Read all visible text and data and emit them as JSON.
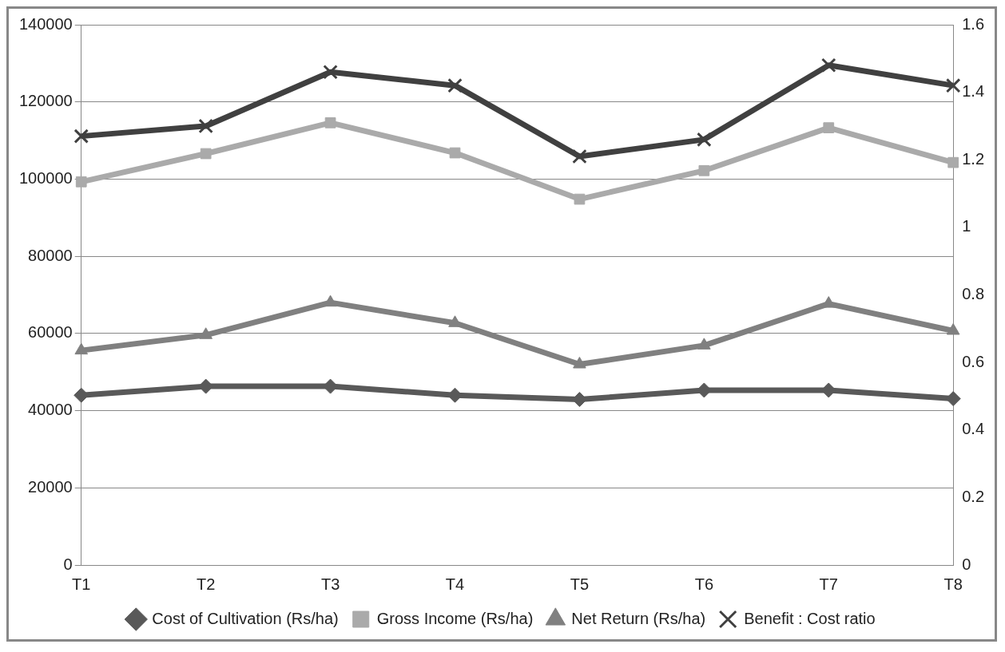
{
  "chart_data": {
    "type": "line",
    "categories": [
      "T1",
      "T2",
      "T3",
      "T4",
      "T5",
      "T6",
      "T7",
      "T8"
    ],
    "series": [
      {
        "name": "Cost of Cultivation (Rs/ha)",
        "color": "#595959",
        "marker": "diamond",
        "values": [
          44000,
          46300,
          46300,
          44000,
          42900,
          45300,
          45300,
          43100
        ]
      },
      {
        "name": "Gross Income (Rs/ha)",
        "color": "#aaaaaa",
        "marker": "square",
        "values": [
          99300,
          106600,
          114600,
          106800,
          94800,
          102200,
          113300,
          104300
        ]
      },
      {
        "name": "Net Return (Rs/ha)",
        "color": "#808080",
        "marker": "triangle",
        "values": [
          55600,
          59600,
          68000,
          62700,
          52000,
          56900,
          67700,
          60700
        ]
      },
      {
        "name": "Benefit : Cost ratio",
        "color": "#404040",
        "marker": "cross",
        "axis": "y2",
        "values": [
          1.27,
          1.3,
          1.46,
          1.42,
          1.21,
          1.26,
          1.48,
          1.42
        ]
      }
    ],
    "ylim": [
      0,
      140000
    ],
    "yticks": [
      0,
      20000,
      40000,
      60000,
      80000,
      100000,
      120000,
      140000
    ],
    "y2lim": [
      0,
      1.6
    ],
    "y2ticks": [
      0,
      0.2,
      0.4,
      0.6,
      0.8,
      1,
      1.2,
      1.4,
      1.6
    ],
    "grid": "y",
    "legend": "bottom"
  }
}
